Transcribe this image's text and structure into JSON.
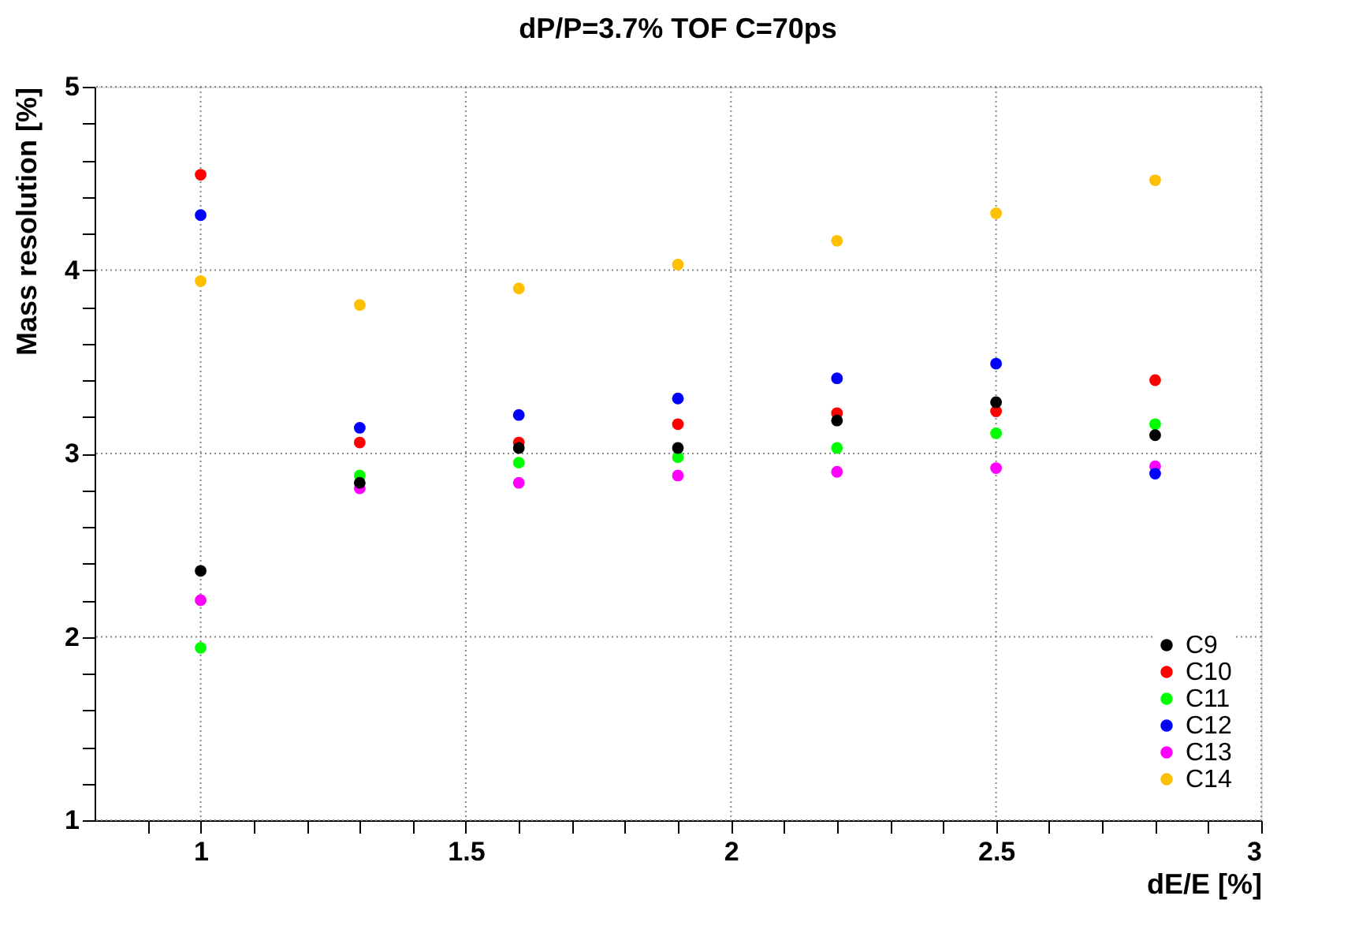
{
  "chart_data": {
    "type": "scatter",
    "title": "dP/P=3.7%   TOF C=70ps",
    "xlabel": "dE/E [%]",
    "ylabel": "Mass resolution [%]",
    "x": [
      1,
      1.3,
      1.6,
      1.9,
      2.2,
      2.5,
      2.8
    ],
    "series": [
      {
        "name": "C9",
        "color": "#000000",
        "values": [
          2.36,
          2.84,
          3.03,
          3.03,
          3.18,
          3.28,
          3.1
        ]
      },
      {
        "name": "C10",
        "color": "#ff0000",
        "values": [
          4.52,
          3.06,
          3.06,
          3.16,
          3.22,
          3.23,
          3.4
        ]
      },
      {
        "name": "C11",
        "color": "#00ff00",
        "values": [
          1.94,
          2.88,
          2.95,
          2.98,
          3.03,
          3.11,
          3.16
        ]
      },
      {
        "name": "C12",
        "color": "#0000ff",
        "values": [
          4.3,
          3.14,
          3.21,
          3.3,
          3.41,
          3.49,
          2.89
        ]
      },
      {
        "name": "C13",
        "color": "#ff00ff",
        "values": [
          2.2,
          2.81,
          2.84,
          2.88,
          2.9,
          2.92,
          2.93
        ]
      },
      {
        "name": "C14",
        "color": "#ffc000",
        "values": [
          3.94,
          3.81,
          3.9,
          4.03,
          4.16,
          4.31,
          4.49
        ]
      }
    ],
    "xlim": [
      0.8,
      3
    ],
    "xticks": [
      {
        "value": 0.9,
        "label": null
      },
      1,
      {
        "value": 1.1,
        "label": null
      },
      {
        "value": 1.2,
        "label": null
      },
      {
        "value": 1.3,
        "label": null
      },
      {
        "value": 1.4,
        "label": null
      },
      1.5,
      {
        "value": 1.6,
        "label": null
      },
      {
        "value": 1.7,
        "label": null
      },
      {
        "value": 1.8,
        "label": null
      },
      {
        "value": 1.9,
        "label": null
      },
      2,
      {
        "value": 2.1,
        "label": null
      },
      {
        "value": 2.2,
        "label": null
      },
      {
        "value": 2.3,
        "label": null
      },
      {
        "value": 2.4,
        "label": null
      },
      2.5,
      {
        "value": 2.6,
        "label": null
      },
      {
        "value": 2.7,
        "label": null
      },
      {
        "value": 2.8,
        "label": null
      },
      {
        "value": 2.9,
        "label": null
      },
      3
    ],
    "ylim": [
      1,
      5
    ],
    "yticks": [
      1,
      {
        "value": 1.2,
        "label": null
      },
      {
        "value": 1.4,
        "label": null
      },
      {
        "value": 1.6,
        "label": null
      },
      {
        "value": 1.8,
        "label": null
      },
      2,
      {
        "value": 2.2,
        "label": null
      },
      {
        "value": 2.4,
        "label": null
      },
      {
        "value": 2.6,
        "label": null
      },
      {
        "value": 2.8,
        "label": null
      },
      3,
      {
        "value": 3.2,
        "label": null
      },
      {
        "value": 3.4,
        "label": null
      },
      {
        "value": 3.6,
        "label": null
      },
      {
        "value": 3.8,
        "label": null
      },
      4,
      {
        "value": 4.2,
        "label": null
      },
      {
        "value": 4.4,
        "label": null
      },
      {
        "value": 4.6,
        "label": null
      },
      {
        "value": 4.8,
        "label": null
      },
      5
    ],
    "grid": true,
    "legend": "bottom right",
    "marker": "circle"
  }
}
